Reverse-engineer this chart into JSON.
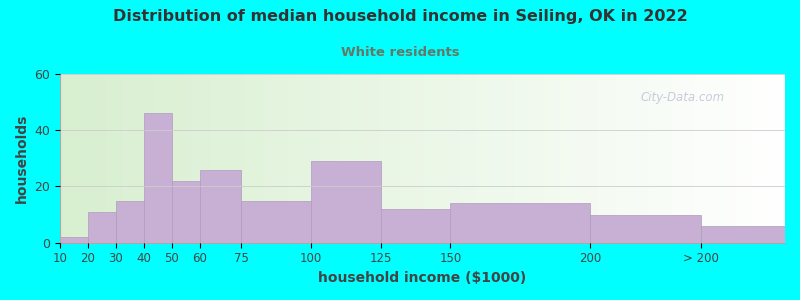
{
  "title": "Distribution of median household income in Seiling, OK in 2022",
  "subtitle": "White residents",
  "xlabel": "household income ($1000)",
  "ylabel": "households",
  "background_outer": "#00FFFF",
  "bar_color": "#c8b0d4",
  "bar_edge_color": "#b09ac0",
  "title_color": "#333333",
  "subtitle_color": "#667766",
  "axis_label_color": "#444444",
  "bin_edges": [
    10,
    20,
    30,
    40,
    50,
    60,
    75,
    100,
    125,
    150,
    200,
    240,
    270
  ],
  "values": [
    2,
    11,
    15,
    46,
    22,
    26,
    15,
    29,
    12,
    14,
    10,
    6
  ],
  "tick_positions": [
    10,
    20,
    30,
    40,
    50,
    60,
    75,
    100,
    125,
    150,
    200,
    240
  ],
  "tick_labels": [
    "10",
    "20",
    "30",
    "40",
    "50",
    "60",
    "75",
    "100",
    "125",
    "150",
    "200",
    "> 200"
  ],
  "ylim": [
    0,
    60
  ],
  "xlim": [
    10,
    270
  ],
  "yticks": [
    0,
    20,
    40,
    60
  ],
  "watermark": "City-Data.com"
}
